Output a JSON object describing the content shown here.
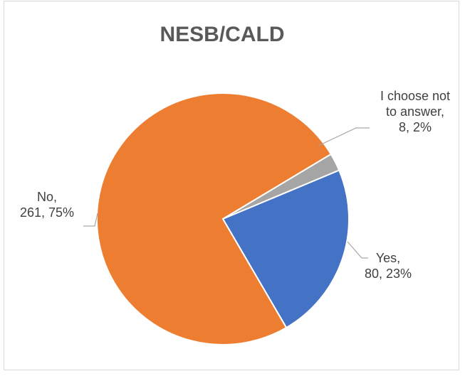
{
  "chart_data": {
    "type": "pie",
    "title": "NESB/CALD",
    "slices": [
      {
        "label": "I choose not to answer",
        "value": 8,
        "percent": 2,
        "color": "#a5a5a5",
        "label_lines": [
          "I choose not",
          "to answer,",
          "8, 2%"
        ]
      },
      {
        "label": "Yes",
        "value": 80,
        "percent": 23,
        "color": "#4472c4",
        "label_lines": [
          "Yes,",
          "80, 23%"
        ]
      },
      {
        "label": "No",
        "value": 261,
        "percent": 75,
        "color": "#ed7d31",
        "label_lines": [
          "No,",
          "261, 75%"
        ]
      }
    ],
    "legend": "none"
  }
}
